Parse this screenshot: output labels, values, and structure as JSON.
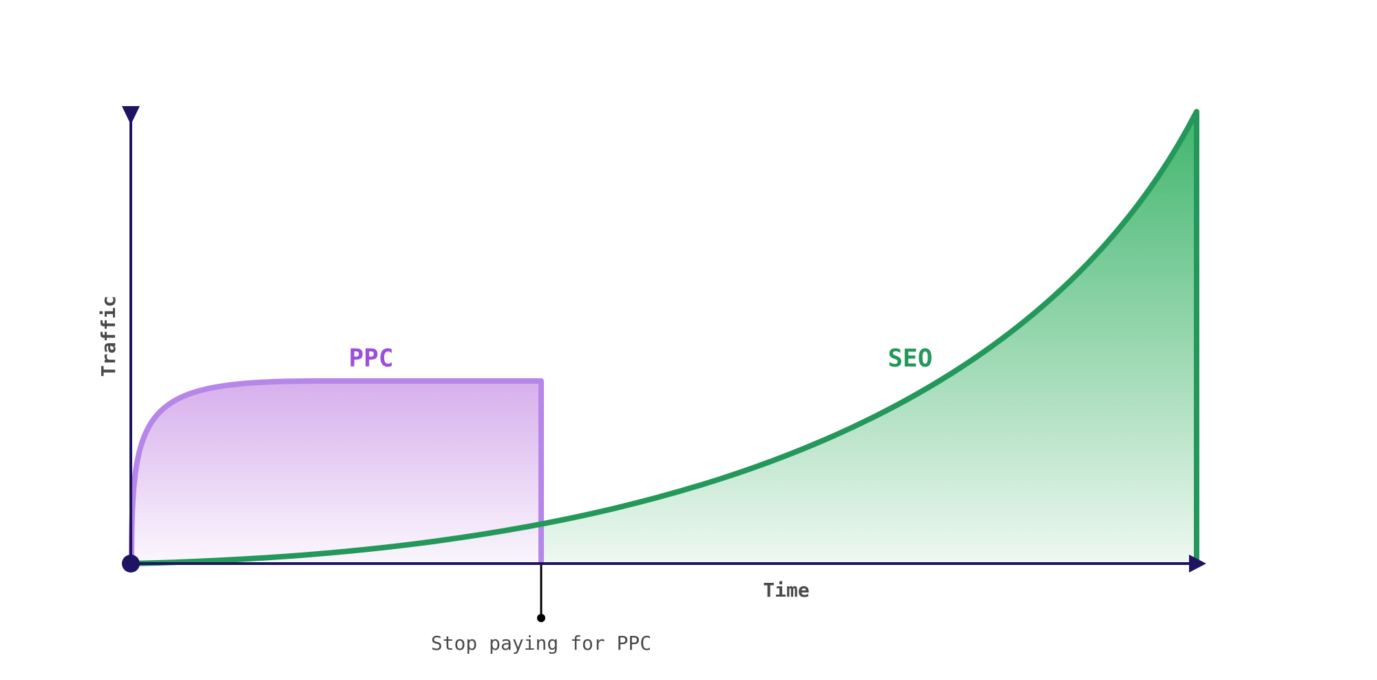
{
  "diagram": {
    "y_axis_label": "Traffic",
    "x_axis_label": "Time",
    "series": [
      {
        "name": "PPC",
        "color": "#b686e8",
        "label_color": "#9b4fdb"
      },
      {
        "name": "SEO",
        "color": "#23985a",
        "label_color": "#23985a"
      }
    ],
    "annotation": {
      "text": "Stop paying for PPC"
    },
    "colors": {
      "axis": "#1f1462",
      "annotation_line": "#000000"
    }
  }
}
